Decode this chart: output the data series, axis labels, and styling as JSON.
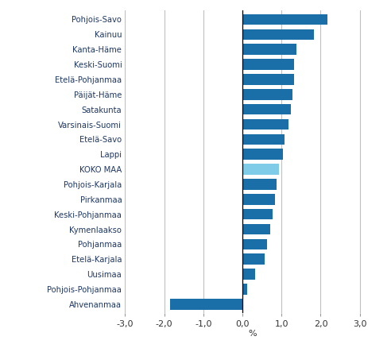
{
  "categories": [
    "Ahvenanmaa",
    "Pohjois-Pohjanmaa",
    "Uusimaa",
    "Etelä-Karjala",
    "Pohjanmaa",
    "Kymenlaakso",
    "Keski-Pohjanmaa",
    "Pirkanmaa",
    "Pohjois-Karjala",
    "KOKO MAA",
    "Lappi",
    "Etelä-Savo",
    "Varsinais-Suomi",
    "Satakunta",
    "Päijät-Häme",
    "Etelä-Pohjanmaa",
    "Keski-Suomi",
    "Kanta-Häme",
    "Kainuu",
    "Pohjois-Savo"
  ],
  "values": [
    -1.85,
    0.13,
    0.32,
    0.57,
    0.62,
    0.72,
    0.78,
    0.83,
    0.88,
    0.93,
    1.03,
    1.08,
    1.18,
    1.23,
    1.28,
    1.33,
    1.33,
    1.38,
    1.83,
    2.18
  ],
  "bar_colors": [
    "#1a6fa8",
    "#1a6fa8",
    "#1a6fa8",
    "#1a6fa8",
    "#1a6fa8",
    "#1a6fa8",
    "#1a6fa8",
    "#1a6fa8",
    "#1a6fa8",
    "#7ecce8",
    "#1a6fa8",
    "#1a6fa8",
    "#1a6fa8",
    "#1a6fa8",
    "#1a6fa8",
    "#1a6fa8",
    "#1a6fa8",
    "#1a6fa8",
    "#1a6fa8",
    "#1a6fa8"
  ],
  "label_color": "#1f3864",
  "xlabel": "%",
  "xlim": [
    -3.0,
    3.5
  ],
  "xticks": [
    -3.0,
    -2.0,
    -1.0,
    0.0,
    1.0,
    2.0,
    3.0
  ],
  "xtick_labels": [
    "-3,0",
    "-2,0",
    "-1,0",
    "0,0",
    "1,0",
    "2,0",
    "3,0"
  ],
  "grid_color": "#c0c0c0",
  "background_color": "#ffffff",
  "bar_height": 0.72
}
